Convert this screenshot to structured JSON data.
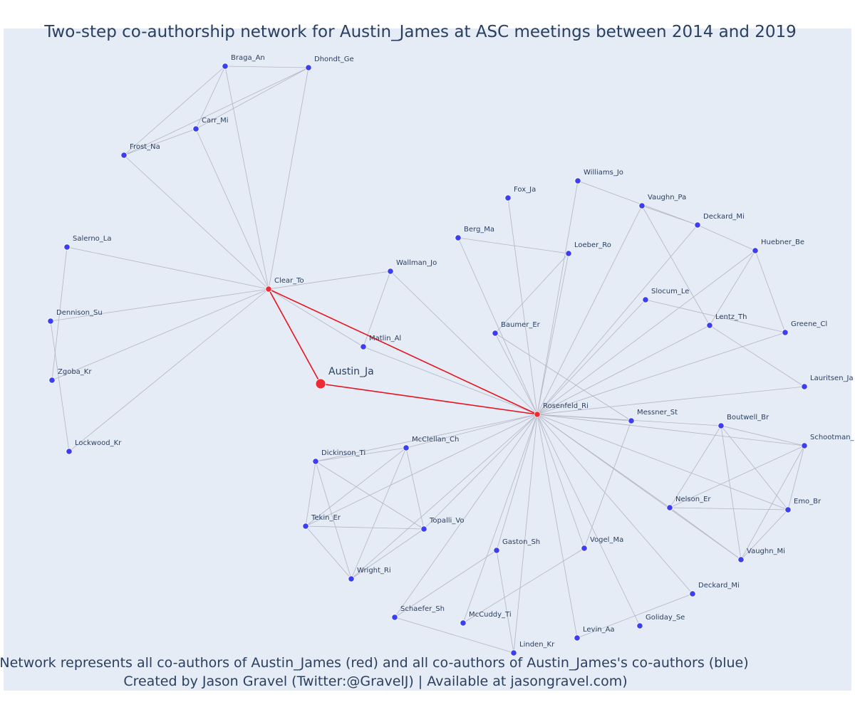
{
  "title": "Two-step co-authorship network for Austin_James at ASC meetings between 2014 and 2019",
  "caption_line1": "Network represents all co-authors of Austin_James (red) and all co-authors of Austin_James's co-authors (blue)",
  "caption_line2": "Created by Jason Gravel (Twitter:@GravelJ) | Available at jasongravel.com)",
  "colors": {
    "background": "#e5ecf6",
    "edge": "#b4b4c4",
    "ego_edge": "#e8131f",
    "red_node": "#ef2a33",
    "blue_node": "#3b3ff0",
    "text": "#2a3f5f"
  },
  "nodes": [
    {
      "id": "Austin_Ja",
      "label": "Austin_Ja",
      "group": "ego"
    },
    {
      "id": "Clear_To",
      "label": "Clear_To",
      "group": "coauthor"
    },
    {
      "id": "Rosenfeld_Ri",
      "label": "Rosenfeld_Ri",
      "group": "coauthor"
    },
    {
      "id": "Braga_An",
      "label": "Braga_An",
      "group": "second"
    },
    {
      "id": "Dhondt_Ge",
      "label": "Dhondt_Ge",
      "group": "second"
    },
    {
      "id": "Carr_Mi",
      "label": "Carr_Mi",
      "group": "second"
    },
    {
      "id": "Frost_Na",
      "label": "Frost_Na",
      "group": "second"
    },
    {
      "id": "Salerno_La",
      "label": "Salerno_La",
      "group": "second"
    },
    {
      "id": "Dennison_Su",
      "label": "Dennison_Su",
      "group": "second"
    },
    {
      "id": "Zgoba_Kr",
      "label": "Zgoba_Kr",
      "group": "second"
    },
    {
      "id": "Lockwood_Kr",
      "label": "Lockwood_Kr",
      "group": "second"
    },
    {
      "id": "Wallman_Jo",
      "label": "Wallman_Jo",
      "group": "second"
    },
    {
      "id": "Matlin_Al",
      "label": "Matlin_Al",
      "group": "second"
    },
    {
      "id": "Williams_Jo",
      "label": "Williams_Jo",
      "group": "second"
    },
    {
      "id": "Fox_Ja",
      "label": "Fox_Ja",
      "group": "second"
    },
    {
      "id": "Vaughn_Pa",
      "label": "Vaughn_Pa",
      "group": "second"
    },
    {
      "id": "Deckard_Mi_top",
      "label": "Deckard_Mi",
      "group": "second"
    },
    {
      "id": "Berg_Ma",
      "label": "Berg_Ma",
      "group": "second"
    },
    {
      "id": "Loeber_Ro",
      "label": "Loeber_Ro",
      "group": "second"
    },
    {
      "id": "Huebner_Be",
      "label": "Huebner_Be",
      "group": "second"
    },
    {
      "id": "Slocum_Le",
      "label": "Slocum_Le",
      "group": "second"
    },
    {
      "id": "Lentz_Th",
      "label": "Lentz_Th",
      "group": "second"
    },
    {
      "id": "Greene_Cl",
      "label": "Greene_Cl",
      "group": "second"
    },
    {
      "id": "Baumer_Er",
      "label": "Baumer_Er",
      "group": "second"
    },
    {
      "id": "Lauritsen_Ja",
      "label": "Lauritsen_Ja",
      "group": "second"
    },
    {
      "id": "Messner_St",
      "label": "Messner_St",
      "group": "second"
    },
    {
      "id": "Boutwell_Br",
      "label": "Boutwell_Br",
      "group": "second"
    },
    {
      "id": "Schootman_",
      "label": "Schootman_",
      "group": "second"
    },
    {
      "id": "Nelson_Er",
      "label": "Nelson_Er",
      "group": "second"
    },
    {
      "id": "Emo_Br",
      "label": "Emo_Br",
      "group": "second"
    },
    {
      "id": "Vaughn_Mi",
      "label": "Vaughn_Mi",
      "group": "second"
    },
    {
      "id": "McClellan_Ch",
      "label": "McClellan_Ch",
      "group": "second"
    },
    {
      "id": "Dickinson_Ti",
      "label": "Dickinson_Ti",
      "group": "second"
    },
    {
      "id": "Tekin_Er",
      "label": "Tekin_Er",
      "group": "second"
    },
    {
      "id": "Topalli_Vo",
      "label": "Topalli_Vo",
      "group": "second"
    },
    {
      "id": "Wright_Ri",
      "label": "Wright_Ri",
      "group": "second"
    },
    {
      "id": "Gaston_Sh",
      "label": "Gaston_Sh",
      "group": "second"
    },
    {
      "id": "Vogel_Ma",
      "label": "Vogel_Ma",
      "group": "second"
    },
    {
      "id": "Schaefer_Sh",
      "label": "Schaefer_Sh",
      "group": "second"
    },
    {
      "id": "McCuddy_Ti",
      "label": "McCuddy_Ti",
      "group": "second"
    },
    {
      "id": "Linden_Kr",
      "label": "Linden_Kr",
      "group": "second"
    },
    {
      "id": "Levin_Aa",
      "label": "Levin_Aa",
      "group": "second"
    },
    {
      "id": "Goliday_Se",
      "label": "Goliday_Se",
      "group": "second"
    },
    {
      "id": "Deckard_Mi_bot",
      "label": "Deckard_Mi",
      "group": "second"
    }
  ],
  "edges": [
    [
      "Austin_Ja",
      "Clear_To",
      "ego"
    ],
    [
      "Austin_Ja",
      "Rosenfeld_Ri",
      "ego"
    ],
    [
      "Clear_To",
      "Rosenfeld_Ri",
      "ego"
    ],
    [
      "Clear_To",
      "Braga_An"
    ],
    [
      "Clear_To",
      "Carr_Mi"
    ],
    [
      "Clear_To",
      "Frost_Na"
    ],
    [
      "Clear_To",
      "Salerno_La"
    ],
    [
      "Clear_To",
      "Dennison_Su"
    ],
    [
      "Clear_To",
      "Zgoba_Kr"
    ],
    [
      "Clear_To",
      "Lockwood_Kr"
    ],
    [
      "Clear_To",
      "Wallman_Jo"
    ],
    [
      "Clear_To",
      "Matlin_Al"
    ],
    [
      "Braga_An",
      "Dhondt_Ge"
    ],
    [
      "Braga_An",
      "Carr_Mi"
    ],
    [
      "Braga_An",
      "Frost_Na"
    ],
    [
      "Dhondt_Ge",
      "Carr_Mi"
    ],
    [
      "Dhondt_Ge",
      "Frost_Na"
    ],
    [
      "Dhondt_Ge",
      "Clear_To"
    ],
    [
      "Carr_Mi",
      "Frost_Na"
    ],
    [
      "Salerno_La",
      "Zgoba_Kr"
    ],
    [
      "Dennison_Su",
      "Lockwood_Kr"
    ],
    [
      "Wallman_Jo",
      "Matlin_Al"
    ],
    [
      "Wallman_Jo",
      "Rosenfeld_Ri"
    ],
    [
      "Matlin_Al",
      "Rosenfeld_Ri"
    ],
    [
      "Rosenfeld_Ri",
      "Williams_Jo"
    ],
    [
      "Rosenfeld_Ri",
      "Fox_Ja"
    ],
    [
      "Rosenfeld_Ri",
      "Vaughn_Pa"
    ],
    [
      "Rosenfeld_Ri",
      "Deckard_Mi_top"
    ],
    [
      "Rosenfeld_Ri",
      "Berg_Ma"
    ],
    [
      "Rosenfeld_Ri",
      "Loeber_Ro"
    ],
    [
      "Rosenfeld_Ri",
      "Huebner_Be"
    ],
    [
      "Rosenfeld_Ri",
      "Slocum_Le"
    ],
    [
      "Rosenfeld_Ri",
      "Lentz_Th"
    ],
    [
      "Rosenfeld_Ri",
      "Greene_Cl"
    ],
    [
      "Rosenfeld_Ri",
      "Baumer_Er"
    ],
    [
      "Rosenfeld_Ri",
      "Lauritsen_Ja"
    ],
    [
      "Rosenfeld_Ri",
      "Messner_St"
    ],
    [
      "Rosenfeld_Ri",
      "Boutwell_Br"
    ],
    [
      "Rosenfeld_Ri",
      "Schootman_"
    ],
    [
      "Rosenfeld_Ri",
      "Nelson_Er"
    ],
    [
      "Rosenfeld_Ri",
      "Emo_Br"
    ],
    [
      "Rosenfeld_Ri",
      "Vaughn_Mi"
    ],
    [
      "Rosenfeld_Ri",
      "McClellan_Ch"
    ],
    [
      "Rosenfeld_Ri",
      "Dickinson_Ti"
    ],
    [
      "Rosenfeld_Ri",
      "Tekin_Er"
    ],
    [
      "Rosenfeld_Ri",
      "Topalli_Vo"
    ],
    [
      "Rosenfeld_Ri",
      "Wright_Ri"
    ],
    [
      "Rosenfeld_Ri",
      "Gaston_Sh"
    ],
    [
      "Rosenfeld_Ri",
      "Vogel_Ma"
    ],
    [
      "Rosenfeld_Ri",
      "Schaefer_Sh"
    ],
    [
      "Rosenfeld_Ri",
      "McCuddy_Ti"
    ],
    [
      "Rosenfeld_Ri",
      "Linden_Kr"
    ],
    [
      "Rosenfeld_Ri",
      "Levin_Aa"
    ],
    [
      "Rosenfeld_Ri",
      "Goliday_Se"
    ],
    [
      "Rosenfeld_Ri",
      "Deckard_Mi_bot"
    ],
    [
      "Williams_Jo",
      "Deckard_Mi_top"
    ],
    [
      "Vaughn_Pa",
      "Deckard_Mi_top"
    ],
    [
      "Vaughn_Pa",
      "Lentz_Th"
    ],
    [
      "Deckard_Mi_top",
      "Huebner_Be"
    ],
    [
      "Berg_Ma",
      "Loeber_Ro"
    ],
    [
      "Loeber_Ro",
      "Baumer_Er"
    ],
    [
      "Huebner_Be",
      "Lentz_Th"
    ],
    [
      "Huebner_Be",
      "Greene_Cl"
    ],
    [
      "Slocum_Le",
      "Greene_Cl"
    ],
    [
      "Lentz_Th",
      "Lauritsen_Ja"
    ],
    [
      "Baumer_Er",
      "Messner_St"
    ],
    [
      "Messner_St",
      "Vogel_Ma"
    ],
    [
      "Boutwell_Br",
      "Schootman_"
    ],
    [
      "Boutwell_Br",
      "Nelson_Er"
    ],
    [
      "Boutwell_Br",
      "Emo_Br"
    ],
    [
      "Boutwell_Br",
      "Vaughn_Mi"
    ],
    [
      "Schootman_",
      "Nelson_Er"
    ],
    [
      "Schootman_",
      "Emo_Br"
    ],
    [
      "Schootman_",
      "Vaughn_Mi"
    ],
    [
      "Nelson_Er",
      "Emo_Br"
    ],
    [
      "Nelson_Er",
      "Vaughn_Mi"
    ],
    [
      "Emo_Br",
      "Vaughn_Mi"
    ],
    [
      "McClellan_Ch",
      "Dickinson_Ti"
    ],
    [
      "McClellan_Ch",
      "Tekin_Er"
    ],
    [
      "McClellan_Ch",
      "Topalli_Vo"
    ],
    [
      "McClellan_Ch",
      "Wright_Ri"
    ],
    [
      "Dickinson_Ti",
      "Tekin_Er"
    ],
    [
      "Dickinson_Ti",
      "Topalli_Vo"
    ],
    [
      "Dickinson_Ti",
      "Wright_Ri"
    ],
    [
      "Tekin_Er",
      "Topalli_Vo"
    ],
    [
      "Tekin_Er",
      "Wright_Ri"
    ],
    [
      "Topalli_Vo",
      "Wright_Ri"
    ],
    [
      "Gaston_Sh",
      "Schaefer_Sh"
    ],
    [
      "Gaston_Sh",
      "Linden_Kr"
    ],
    [
      "Vogel_Ma",
      "McCuddy_Ti"
    ],
    [
      "Schaefer_Sh",
      "Linden_Kr"
    ],
    [
      "Levin_Aa",
      "Deckard_Mi_bot"
    ]
  ]
}
